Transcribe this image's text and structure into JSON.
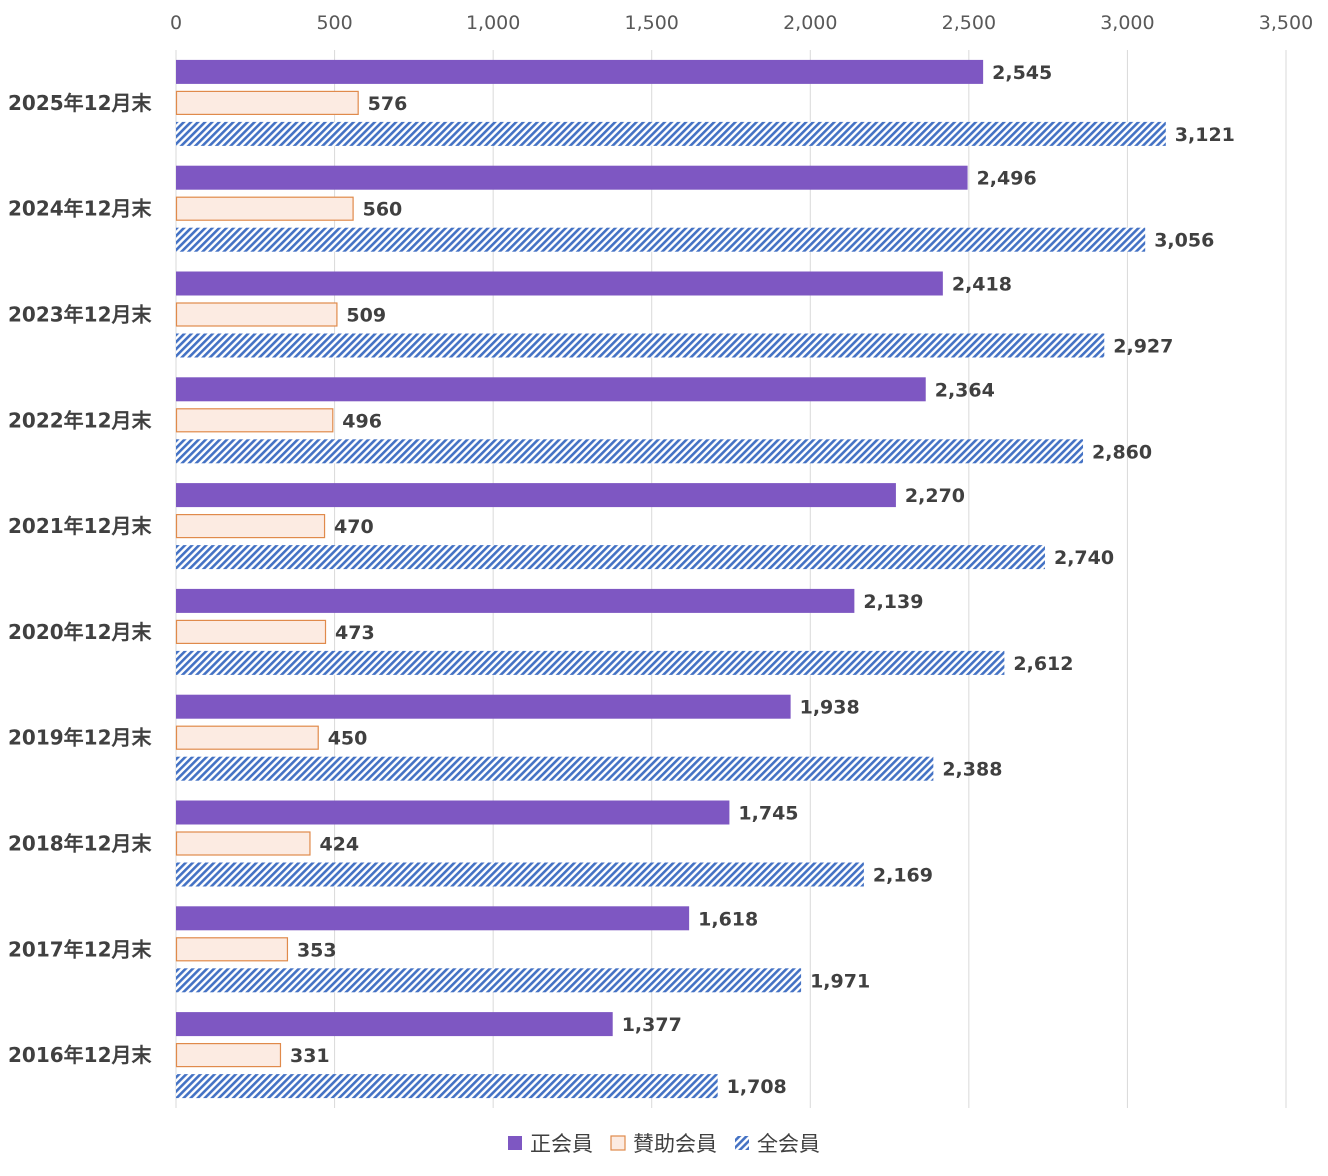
{
  "chart_data": {
    "type": "bar",
    "orientation": "horizontal",
    "title": "",
    "xlabel": "",
    "ylabel": "",
    "xlim": [
      0,
      3500
    ],
    "x_ticks": [
      0,
      500,
      1000,
      1500,
      2000,
      2500,
      3000,
      3500
    ],
    "x_tick_labels": [
      "0",
      "500",
      "1,000",
      "1,500",
      "2,000",
      "2,500",
      "3,000",
      "3,500"
    ],
    "x_axis_position": "top",
    "grid": "vertical",
    "legend_position": "bottom",
    "categories": [
      "2025年12月末",
      "2024年12月末",
      "2023年12月末",
      "2022年12月末",
      "2021年12月末",
      "2020年12月末",
      "2019年12月末",
      "2018年12月末",
      "2017年12月末",
      "2016年12月末"
    ],
    "series": [
      {
        "name": "正会員",
        "color": "#7E57C2",
        "values": [
          2545,
          2496,
          2418,
          2364,
          2270,
          2139,
          1938,
          1745,
          1618,
          1377
        ],
        "labels": [
          "2,545",
          "2,496",
          "2,418",
          "2,364",
          "2,270",
          "2,139",
          "1,938",
          "1,745",
          "1,618",
          "1,377"
        ]
      },
      {
        "name": "賛助会員",
        "color": "#FCEBE2",
        "border_color": "#E08A4B",
        "values": [
          576,
          560,
          509,
          496,
          470,
          473,
          450,
          424,
          353,
          331
        ],
        "labels": [
          "576",
          "560",
          "509",
          "496",
          "470",
          "473",
          "450",
          "424",
          "353",
          "331"
        ]
      },
      {
        "name": "全会員",
        "color": "#4472C4",
        "pattern": "diagonal-hatch",
        "values": [
          3121,
          3056,
          2927,
          2860,
          2740,
          2612,
          2388,
          2169,
          1971,
          1708
        ],
        "labels": [
          "3,121",
          "3,056",
          "2,927",
          "2,860",
          "2,740",
          "2,612",
          "2,388",
          "2,169",
          "1,971",
          "1,708"
        ]
      }
    ]
  }
}
